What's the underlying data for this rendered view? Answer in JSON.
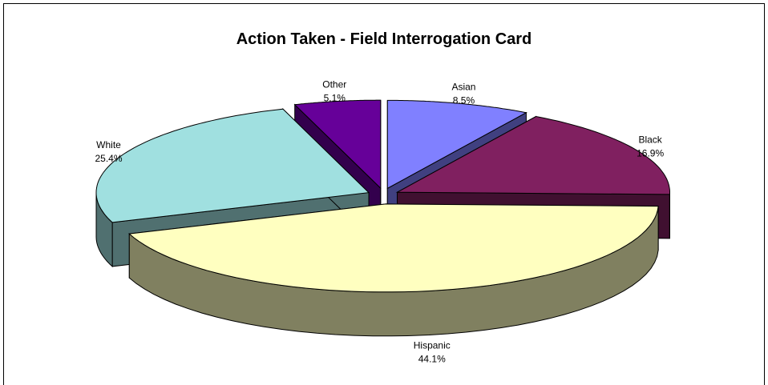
{
  "chart_data": {
    "type": "pie",
    "title": "Action Taken - Field Interrogation Card",
    "categories": [
      "Asian",
      "Black",
      "Hispanic",
      "White",
      "Other"
    ],
    "values": [
      8.5,
      16.9,
      44.1,
      25.4,
      5.1
    ],
    "value_labels": [
      "8.5%",
      "16.9%",
      "44.1%",
      "25.4%",
      "5.1%"
    ],
    "colors": [
      "#8080ff",
      "#802060",
      "#ffffc0",
      "#a0e0e0",
      "#660099"
    ]
  }
}
